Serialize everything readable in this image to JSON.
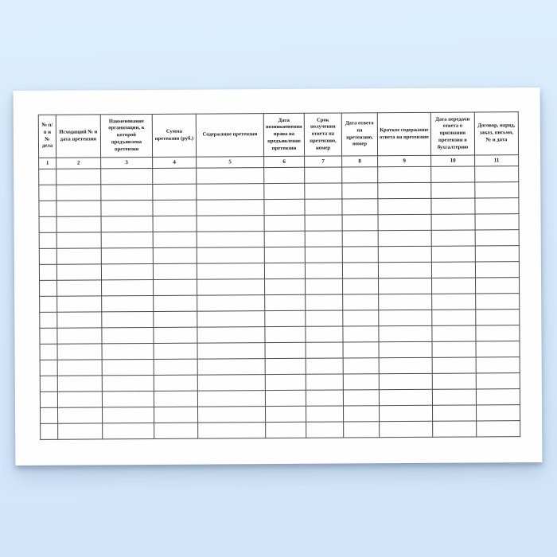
{
  "colors": {
    "background_top": "#dceefd",
    "background_bottom": "#d1e5fa",
    "paper": "#fefefe",
    "table_border": "#4a4a4a",
    "text": "#161616"
  },
  "table": {
    "empty_row_count": 17,
    "columns": [
      {
        "number": "1",
        "title": "№ п/п и № дела"
      },
      {
        "number": "2",
        "title": "Исходящий № и дата претензии"
      },
      {
        "number": "3",
        "title": "Наименование организации, к которой предъявлена претензия"
      },
      {
        "number": "4",
        "title": "Сумма претензии (руб.)"
      },
      {
        "number": "5",
        "title": "Содержание претензии"
      },
      {
        "number": "6",
        "title": "Дата возникновения права на предъявление претензии"
      },
      {
        "number": "7",
        "title": "Срок получения ответа на претензию, номер"
      },
      {
        "number": "8",
        "title": "Дата ответа на претензию, номер"
      },
      {
        "number": "9",
        "title": "Краткое содержание ответа на претензию"
      },
      {
        "number": "10",
        "title": "Дата передачи ответа о признании претензии в бухгалтерию"
      },
      {
        "number": "11",
        "title": "Договор, наряд, заказ, письмо, № и дата"
      }
    ]
  }
}
